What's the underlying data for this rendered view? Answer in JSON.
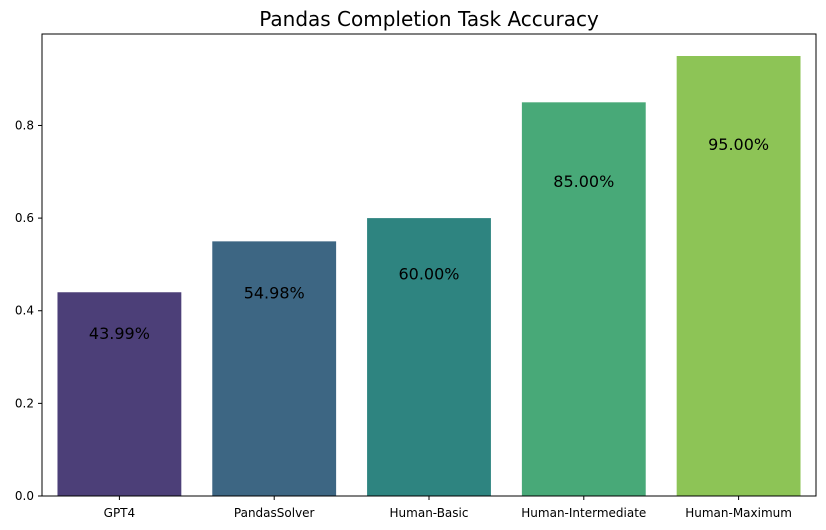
{
  "chart_data": {
    "type": "bar",
    "title": "Pandas Completion Task Accuracy",
    "xlabel": "",
    "ylabel": "",
    "categories": [
      "GPT4",
      "PandasSolver",
      "Human-Basic",
      "Human-Intermediate",
      "Human-Maximum"
    ],
    "values": [
      0.4399,
      0.5498,
      0.6,
      0.85,
      0.95
    ],
    "value_labels": [
      "43.99%",
      "54.98%",
      "60.00%",
      "85.00%",
      "95.00%"
    ],
    "colors": [
      "#4c3f78",
      "#3d6683",
      "#2e8480",
      "#48a978",
      "#8dc456"
    ],
    "ylim": [
      0,
      0.9975
    ],
    "yticks": [
      0.0,
      0.2,
      0.4,
      0.6,
      0.8
    ],
    "ytick_labels": [
      "0.0",
      "0.2",
      "0.4",
      "0.6",
      "0.8"
    ],
    "grid": false,
    "legend": "none"
  }
}
